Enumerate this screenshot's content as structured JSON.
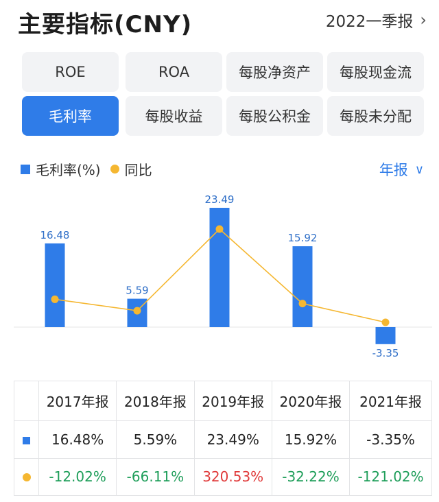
{
  "header": {
    "title": "主要指标(CNY)",
    "period": "2022一季报"
  },
  "tabs": [
    {
      "label": "ROE",
      "active": false
    },
    {
      "label": "ROA",
      "active": false
    },
    {
      "label": "每股净资产",
      "active": false
    },
    {
      "label": "每股现金流",
      "active": false
    },
    {
      "label": "毛利率",
      "active": true
    },
    {
      "label": "每股收益",
      "active": false
    },
    {
      "label": "每股公积金",
      "active": false
    },
    {
      "label": "每股未分配",
      "active": false
    }
  ],
  "legend": {
    "bar_label": "毛利率(%)",
    "line_label": "同比"
  },
  "frequency": "年报",
  "chart_data": {
    "type": "bar",
    "categories": [
      "2017年报",
      "2018年报",
      "2019年报",
      "2020年报",
      "2021年报"
    ],
    "series": [
      {
        "name": "毛利率(%)",
        "type": "bar",
        "values": [
          16.48,
          5.59,
          23.49,
          15.92,
          -3.35
        ],
        "color": "#2f7ce8"
      },
      {
        "name": "同比",
        "type": "line",
        "values": [
          -12.02,
          -66.11,
          320.53,
          -32.22,
          -121.02
        ],
        "color": "#f5b731"
      }
    ],
    "data_labels": [
      "16.48",
      "5.59",
      "23.49",
      "15.92",
      "-3.35"
    ],
    "grid": false
  },
  "table": {
    "headers": [
      "2017年报",
      "2018年报",
      "2019年报",
      "2020年报",
      "2021年报"
    ],
    "rows": [
      {
        "marker": "bar",
        "values": [
          "16.48%",
          "5.59%",
          "23.49%",
          "15.92%",
          "-3.35%"
        ],
        "tones": [
          "",
          "",
          "",
          "",
          ""
        ]
      },
      {
        "marker": "line",
        "values": [
          "-12.02%",
          "-66.11%",
          "320.53%",
          "-32.22%",
          "-121.02%"
        ],
        "tones": [
          "green",
          "green",
          "red",
          "green",
          "green"
        ]
      }
    ]
  }
}
